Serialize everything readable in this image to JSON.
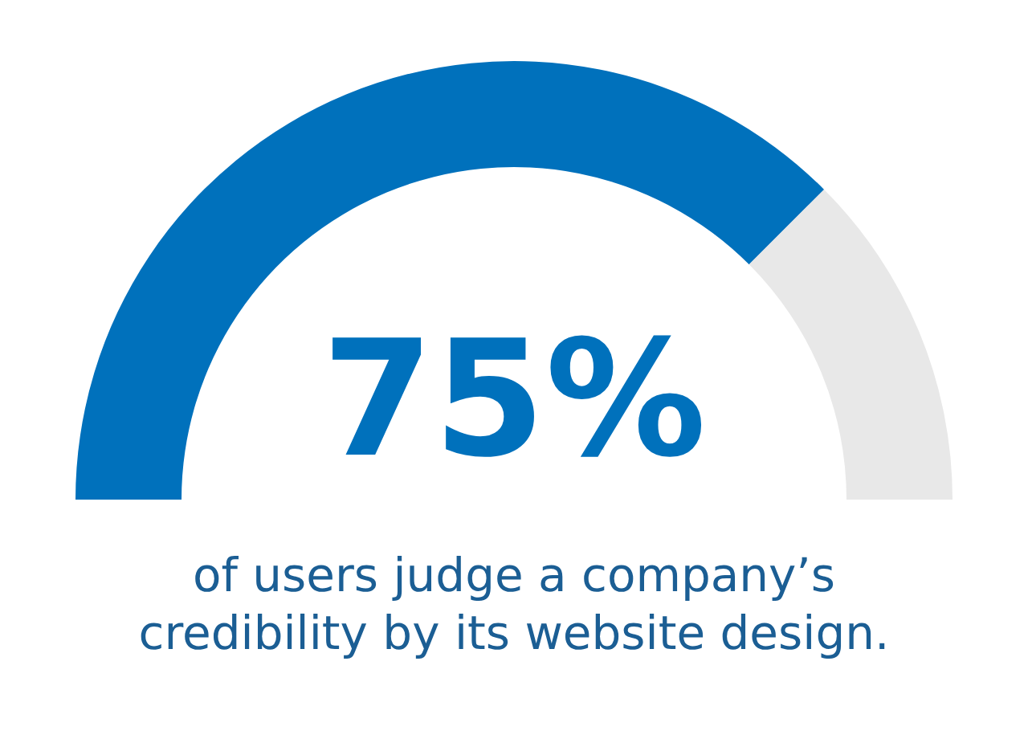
{
  "chart_data": {
    "type": "donut",
    "categories": [
      null,
      null
    ],
    "values": [
      75,
      25
    ],
    "colors": [
      "#0071bc",
      "#e8e8e8"
    ],
    "value_labels": [
      "75%",
      null
    ],
    "annotations": [
      "of users judge a company’s credibility by its website design."
    ]
  }
}
